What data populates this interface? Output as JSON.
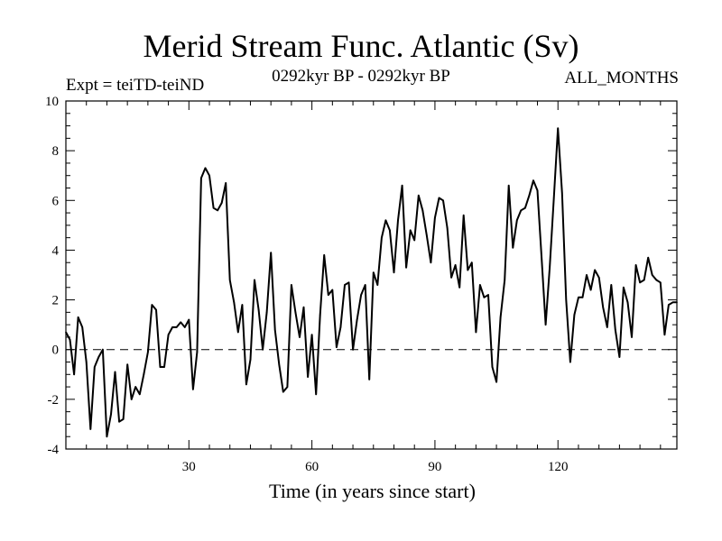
{
  "chart_data": {
    "type": "line",
    "title": "Merid Stream Func. Atlantic (Sv)",
    "subtitle": "0292kyr BP - 0292kyr BP",
    "experiment": "Expt = teiTD-teiND",
    "period": "ALL_MONTHS",
    "xlabel": "Time (in years since start)",
    "ylabel": "",
    "xlim": [
      0,
      149
    ],
    "ylim": [
      -4,
      10
    ],
    "xticks": [
      30,
      60,
      90,
      120
    ],
    "yticks": [
      -4,
      -2,
      0,
      2,
      4,
      6,
      8,
      10
    ],
    "reference_line": 0,
    "x": [
      0,
      1,
      2,
      3,
      4,
      5,
      6,
      7,
      8,
      9,
      10,
      11,
      12,
      13,
      14,
      15,
      16,
      17,
      18,
      19,
      20,
      21,
      22,
      23,
      24,
      25,
      26,
      27,
      28,
      29,
      30,
      31,
      32,
      33,
      34,
      35,
      36,
      37,
      38,
      39,
      40,
      41,
      42,
      43,
      44,
      45,
      46,
      47,
      48,
      49,
      50,
      51,
      52,
      53,
      54,
      55,
      56,
      57,
      58,
      59,
      60,
      61,
      62,
      63,
      64,
      65,
      66,
      67,
      68,
      69,
      70,
      71,
      72,
      73,
      74,
      75,
      76,
      77,
      78,
      79,
      80,
      81,
      82,
      83,
      84,
      85,
      86,
      87,
      88,
      89,
      90,
      91,
      92,
      93,
      94,
      95,
      96,
      97,
      98,
      99,
      100,
      101,
      102,
      103,
      104,
      105,
      106,
      107,
      108,
      109,
      110,
      111,
      112,
      113,
      114,
      115,
      116,
      117,
      118,
      119,
      120,
      121,
      122,
      123,
      124,
      125,
      126,
      127,
      128,
      129,
      130,
      131,
      132,
      133,
      134,
      135,
      136,
      137,
      138,
      139,
      140,
      141,
      142,
      143,
      144,
      145,
      146,
      147,
      148,
      149
    ],
    "y": [
      0.7,
      0.4,
      -1.0,
      1.3,
      0.9,
      -0.5,
      -3.2,
      -0.7,
      -0.3,
      0.0,
      -3.5,
      -2.6,
      -0.9,
      -2.9,
      -2.8,
      -0.6,
      -2.0,
      -1.5,
      -1.8,
      -1.0,
      -0.1,
      1.8,
      1.6,
      -0.7,
      -0.7,
      0.6,
      0.9,
      0.9,
      1.1,
      0.9,
      1.2,
      -1.6,
      -0.1,
      6.9,
      7.3,
      7.0,
      5.7,
      5.6,
      5.9,
      6.7,
      2.8,
      1.9,
      0.7,
      1.8,
      -1.4,
      -0.4,
      2.8,
      1.6,
      0.0,
      1.5,
      3.9,
      0.8,
      -0.6,
      -1.7,
      -1.5,
      2.6,
      1.5,
      0.5,
      1.7,
      -1.1,
      0.6,
      -1.8,
      1.4,
      3.8,
      2.2,
      2.4,
      0.1,
      0.9,
      2.6,
      2.7,
      0.0,
      1.2,
      2.2,
      2.6,
      -1.2,
      3.1,
      2.6,
      4.5,
      5.2,
      4.8,
      3.1,
      5.2,
      6.6,
      3.3,
      4.8,
      4.4,
      6.2,
      5.6,
      4.6,
      3.5,
      5.3,
      6.1,
      6.0,
      4.9,
      2.9,
      3.4,
      2.5,
      5.4,
      3.2,
      3.5,
      0.7,
      2.6,
      2.1,
      2.2,
      -0.7,
      -1.3,
      1.3,
      2.8,
      6.6,
      4.1,
      5.2,
      5.6,
      5.7,
      6.2,
      6.8,
      6.4,
      3.7,
      1.0,
      3.3,
      6.1,
      8.9,
      6.3,
      2.0,
      -0.5,
      1.4,
      2.1,
      2.1,
      3.0,
      2.4,
      3.2,
      2.9,
      1.7,
      0.9,
      2.6,
      0.8,
      -0.3,
      2.5,
      1.9,
      0.5,
      3.4,
      2.7,
      2.8,
      3.7,
      3.0,
      2.8,
      2.7,
      0.6,
      1.8,
      1.9,
      1.9
    ]
  }
}
